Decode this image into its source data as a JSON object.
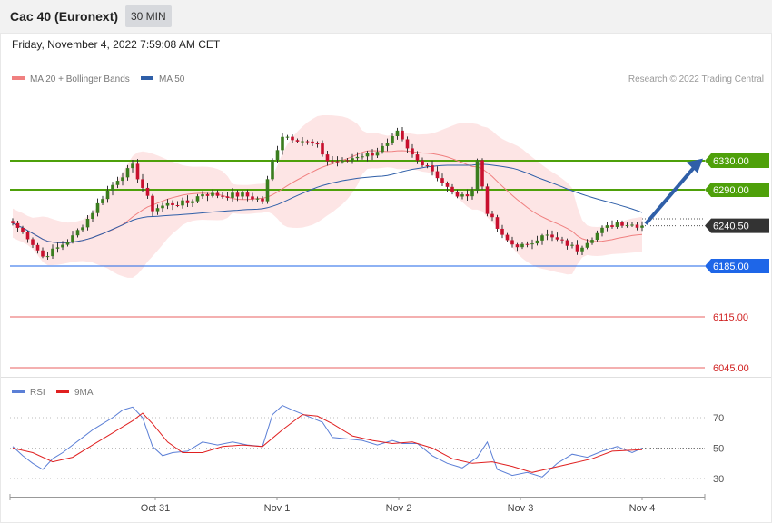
{
  "header": {
    "title": "Cac 40 (Euronext)",
    "timeframe": "30 MIN",
    "datetime": "Friday, November 4, 2022 7:59:08 AM CET"
  },
  "legend": {
    "ma20": "MA 20 + Bollinger Bands",
    "ma50": "MA 50",
    "copyright": "Research © 2022 Trading Central",
    "ma20_color": "#f08080",
    "ma50_color": "#2f5fa8"
  },
  "rsi_legend": {
    "rsi": "RSI",
    "ma9": "9MA",
    "rsi_color": "#5b7fd6",
    "ma9_color": "#e02020"
  },
  "chart_data": {
    "type": "candlestick",
    "ylim": [
      6027,
      6387
    ],
    "x_ticks": [
      "Oct 31",
      "Nov 1",
      "Nov 2",
      "Nov 3",
      "Nov 4"
    ],
    "levels": [
      {
        "value": 6330.0,
        "label": "6330.00",
        "kind": "resistance",
        "color": "#4ea00a"
      },
      {
        "value": 6290.0,
        "label": "6290.00",
        "kind": "resistance",
        "color": "#4ea00a"
      },
      {
        "value": 6240.5,
        "label": "6240.50",
        "kind": "last",
        "color": "#333333"
      },
      {
        "value": 6185.0,
        "label": "6185.00",
        "kind": "support",
        "color": "#1e66e8"
      },
      {
        "value": 6115.0,
        "label": "6115.00",
        "kind": "support",
        "color": "#e86060"
      },
      {
        "value": 6045.0,
        "label": "6045.00",
        "kind": "support",
        "color": "#e86060"
      }
    ],
    "close_points": [
      [
        0,
        6244
      ],
      [
        3,
        6225
      ],
      [
        6,
        6198
      ],
      [
        9,
        6210
      ],
      [
        12,
        6225
      ],
      [
        15,
        6250
      ],
      [
        18,
        6280
      ],
      [
        21,
        6305
      ],
      [
        24,
        6322
      ],
      [
        26,
        6293
      ],
      [
        28,
        6263
      ],
      [
        31,
        6270
      ],
      [
        35,
        6272
      ],
      [
        38,
        6285
      ],
      [
        42,
        6282
      ],
      [
        46,
        6283
      ],
      [
        50,
        6275
      ],
      [
        52,
        6330
      ],
      [
        54,
        6365
      ],
      [
        57,
        6360
      ],
      [
        61,
        6350
      ],
      [
        63,
        6330
      ],
      [
        66,
        6328
      ],
      [
        69,
        6337
      ],
      [
        72,
        6340
      ],
      [
        75,
        6352
      ],
      [
        77,
        6368
      ],
      [
        79,
        6345
      ],
      [
        81,
        6330
      ],
      [
        83,
        6325
      ],
      [
        86,
        6300
      ],
      [
        88,
        6285
      ],
      [
        90,
        6280
      ],
      [
        92,
        6290
      ],
      [
        93,
        6330
      ],
      [
        95,
        6260
      ],
      [
        98,
        6225
      ],
      [
        100,
        6215
      ],
      [
        103,
        6212
      ],
      [
        106,
        6230
      ],
      [
        108,
        6223
      ],
      [
        111,
        6215
      ],
      [
        113,
        6208
      ],
      [
        115,
        6220
      ],
      [
        118,
        6235
      ],
      [
        121,
        6245
      ],
      [
        124,
        6242
      ],
      [
        126,
        6240.5
      ]
    ],
    "rsi_ylim": [
      15,
      85
    ],
    "rsi_ticks": [
      70,
      50,
      30
    ],
    "rsi_points": [
      [
        0,
        51
      ],
      [
        2,
        45
      ],
      [
        4,
        40
      ],
      [
        6,
        36
      ],
      [
        8,
        43
      ],
      [
        10,
        47
      ],
      [
        12,
        52
      ],
      [
        14,
        57
      ],
      [
        16,
        62
      ],
      [
        18,
        66
      ],
      [
        20,
        70
      ],
      [
        22,
        75
      ],
      [
        24,
        77
      ],
      [
        26,
        70
      ],
      [
        28,
        51
      ],
      [
        30,
        45
      ],
      [
        32,
        47
      ],
      [
        35,
        48
      ],
      [
        38,
        54
      ],
      [
        41,
        52
      ],
      [
        44,
        54
      ],
      [
        47,
        52
      ],
      [
        50,
        51
      ],
      [
        52,
        72
      ],
      [
        54,
        78
      ],
      [
        56,
        75
      ],
      [
        59,
        71
      ],
      [
        62,
        67
      ],
      [
        64,
        57
      ],
      [
        67,
        56
      ],
      [
        70,
        55
      ],
      [
        73,
        52
      ],
      [
        76,
        55
      ],
      [
        78,
        53
      ],
      [
        81,
        53
      ],
      [
        84,
        45
      ],
      [
        87,
        40
      ],
      [
        90,
        37
      ],
      [
        93,
        44
      ],
      [
        95,
        54
      ],
      [
        97,
        36
      ],
      [
        100,
        32
      ],
      [
        103,
        34
      ],
      [
        106,
        31
      ],
      [
        109,
        40
      ],
      [
        112,
        46
      ],
      [
        115,
        44
      ],
      [
        118,
        48
      ],
      [
        121,
        51
      ],
      [
        124,
        47
      ],
      [
        126,
        50
      ]
    ],
    "rsi_ma9_points": [
      [
        0,
        50
      ],
      [
        4,
        47
      ],
      [
        8,
        41
      ],
      [
        12,
        44
      ],
      [
        16,
        52
      ],
      [
        20,
        60
      ],
      [
        24,
        68
      ],
      [
        26,
        73
      ],
      [
        28,
        66
      ],
      [
        31,
        54
      ],
      [
        34,
        47
      ],
      [
        38,
        47
      ],
      [
        42,
        51
      ],
      [
        46,
        52
      ],
      [
        50,
        51
      ],
      [
        54,
        62
      ],
      [
        58,
        72
      ],
      [
        61,
        71
      ],
      [
        64,
        66
      ],
      [
        68,
        58
      ],
      [
        72,
        55
      ],
      [
        76,
        53
      ],
      [
        80,
        54
      ],
      [
        84,
        50
      ],
      [
        88,
        43
      ],
      [
        92,
        40
      ],
      [
        96,
        41
      ],
      [
        100,
        38
      ],
      [
        104,
        34
      ],
      [
        108,
        37
      ],
      [
        112,
        40
      ],
      [
        116,
        43
      ],
      [
        120,
        48
      ],
      [
        126,
        49
      ]
    ]
  }
}
